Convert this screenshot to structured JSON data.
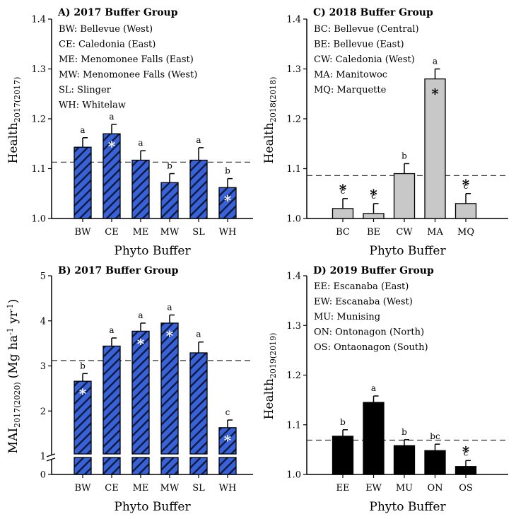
{
  "chart_data": [
    {
      "type": "bar",
      "panel": "A",
      "title": "A) 2017 Buffer Group",
      "xlabel": "Phyto Buffer",
      "ylabel": "Health",
      "ylabel_subscript": "2017(2017)",
      "ylim": [
        1.0,
        1.4
      ],
      "yticks": [
        "1.0",
        "1.1",
        "1.2",
        "1.3",
        "1.4"
      ],
      "ytick_values": [
        1.0,
        1.1,
        1.2,
        1.3,
        1.4
      ],
      "categories": [
        "BW",
        "CE",
        "ME",
        "MW",
        "SL",
        "WH"
      ],
      "values": [
        1.143,
        1.17,
        1.117,
        1.072,
        1.117,
        1.062
      ],
      "errors": [
        0.019,
        0.019,
        0.019,
        0.018,
        0.025,
        0.018
      ],
      "letters": [
        "a",
        "a",
        "a",
        "b",
        "a",
        "b"
      ],
      "stars": [
        false,
        true,
        false,
        false,
        false,
        true
      ],
      "reference_line": 1.113,
      "bar_color": "#3a62d8",
      "hatched": true,
      "legend": [
        "BW: Bellevue (West)",
        "CE: Caledonia (East)",
        "ME: Menomonee Falls (East)",
        "MW: Menomonee Falls (West)",
        "SL: Slinger",
        "WH: Whitelaw"
      ]
    },
    {
      "type": "bar",
      "panel": "C",
      "title": "C) 2018 Buffer Group",
      "xlabel": "Phyto Buffer",
      "ylabel": "Health",
      "ylabel_subscript": "2018(2018)",
      "ylim": [
        1.0,
        1.4
      ],
      "yticks": [
        "1.0",
        "1.1",
        "1.2",
        "1.3",
        "1.4"
      ],
      "ytick_values": [
        1.0,
        1.1,
        1.2,
        1.3,
        1.4
      ],
      "categories": [
        "BC",
        "BE",
        "CW",
        "MA",
        "MQ"
      ],
      "values": [
        1.02,
        1.01,
        1.09,
        1.28,
        1.03
      ],
      "errors": [
        0.02,
        0.02,
        0.02,
        0.02,
        0.02
      ],
      "letters": [
        "c",
        "c",
        "b",
        "a",
        "c"
      ],
      "stars": [
        true,
        true,
        false,
        true,
        true
      ],
      "reference_line": 1.086,
      "bar_color": "#c8c8c8",
      "hatched": false,
      "legend": [
        "BC: Bellevue (Central)",
        "BE: Bellevue (East)",
        "CW: Caledonia (West)",
        "MA: Manitowoc",
        "MQ: Marquette"
      ]
    },
    {
      "type": "bar",
      "panel": "B",
      "title": "B) 2017 Buffer Group",
      "xlabel": "Phyto Buffer",
      "ylabel": "MAI",
      "ylabel_subscript": "2017(2020)",
      "ylabel_units": "(Mg ha-1 yr-1)",
      "ylabel_units_parts": [
        "(Mg ha",
        "-1",
        " yr",
        "-1",
        ")"
      ],
      "ylim": [
        0,
        5
      ],
      "axis_break": [
        0.85,
        1.0
      ],
      "yticks": [
        "0",
        "1",
        "2",
        "3",
        "4",
        "5"
      ],
      "ytick_values": [
        0,
        1,
        2,
        3,
        4,
        5
      ],
      "categories": [
        "BW",
        "CE",
        "ME",
        "MW",
        "SL",
        "WH"
      ],
      "values": [
        2.66,
        3.44,
        3.77,
        3.95,
        3.29,
        1.63
      ],
      "errors": [
        0.17,
        0.18,
        0.18,
        0.18,
        0.24,
        0.17
      ],
      "letters": [
        "b",
        "a",
        "a",
        "a",
        "a",
        "c"
      ],
      "stars": [
        true,
        false,
        true,
        true,
        false,
        true
      ],
      "reference_line": 3.12,
      "bar_color": "#3a62d8",
      "hatched": true
    },
    {
      "type": "bar",
      "panel": "D",
      "title": "D) 2019 Buffer Group",
      "xlabel": "Phyto Buffer",
      "ylabel": "Health",
      "ylabel_subscript": "2019(2019)",
      "ylim": [
        1.0,
        1.4
      ],
      "yticks": [
        "1.0",
        "1.1",
        "1.2",
        "1.3",
        "1.4"
      ],
      "ytick_values": [
        1.0,
        1.1,
        1.2,
        1.3,
        1.4
      ],
      "categories": [
        "EE",
        "EW",
        "MU",
        "ON",
        "OS"
      ],
      "values": [
        1.077,
        1.145,
        1.058,
        1.048,
        1.016
      ],
      "errors": [
        0.013,
        0.013,
        0.012,
        0.013,
        0.012
      ],
      "letters": [
        "b",
        "a",
        "b",
        "bc",
        "c"
      ],
      "stars": [
        false,
        false,
        false,
        false,
        true
      ],
      "reference_line": 1.069,
      "bar_color": "#000000",
      "hatched": false,
      "legend": [
        "EE: Escanaba (East)",
        "EW: Escanaba (West)",
        "MU: Munising",
        "ON: Ontonagon (North)",
        "OS: Ontaonagon (South)"
      ]
    }
  ]
}
